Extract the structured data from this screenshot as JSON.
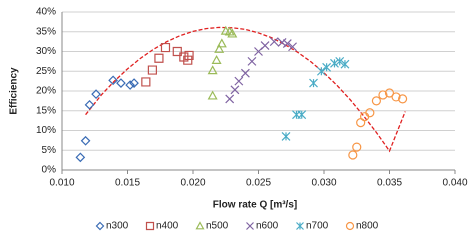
{
  "chart_data": {
    "type": "scatter",
    "x_label": "Flow rate Q [m³/s]",
    "y_label": "Efficiency",
    "xlim": [
      0.01,
      0.04
    ],
    "ylim": [
      0,
      40
    ],
    "xticks": [
      {
        "value": 0.01,
        "label": "0.010"
      },
      {
        "value": 0.015,
        "label": "0.015"
      },
      {
        "value": 0.02,
        "label": "0.020"
      },
      {
        "value": 0.025,
        "label": "0.025"
      },
      {
        "value": 0.03,
        "label": "0.030"
      },
      {
        "value": 0.035,
        "label": "0.035"
      },
      {
        "value": 0.04,
        "label": "0.040"
      }
    ],
    "yticks": [
      {
        "value": 0,
        "label": "0%"
      },
      {
        "value": 5,
        "label": "5%"
      },
      {
        "value": 10,
        "label": "10%"
      },
      {
        "value": 15,
        "label": "15%"
      },
      {
        "value": 20,
        "label": "20%"
      },
      {
        "value": 25,
        "label": "25%"
      },
      {
        "value": 30,
        "label": "30%"
      },
      {
        "value": 35,
        "label": "35%"
      },
      {
        "value": 40,
        "label": "40%"
      }
    ],
    "grid": true,
    "legend": "bottom",
    "series": [
      {
        "name": "n300",
        "color": "#3a6cb5",
        "marker": "diamond",
        "x": [
          0.0114,
          0.0118,
          0.0121,
          0.0126,
          0.0139,
          0.0145,
          0.0152,
          0.0155
        ],
        "values": [
          3.2,
          7.4,
          16.5,
          19.2,
          22.7,
          22.0,
          21.5,
          22.0
        ]
      },
      {
        "name": "n400",
        "color": "#c0504d",
        "marker": "square",
        "x": [
          0.0164,
          0.0169,
          0.0174,
          0.0179,
          0.0188,
          0.0193,
          0.0196,
          0.0197
        ],
        "values": [
          22.3,
          25.3,
          28.3,
          31.0,
          30.0,
          28.6,
          27.8,
          29.0
        ]
      },
      {
        "name": "n500",
        "color": "#9bbb59",
        "marker": "triangle",
        "x": [
          0.0215,
          0.0215,
          0.0218,
          0.022,
          0.0222,
          0.0225,
          0.0228,
          0.023
        ],
        "values": [
          18.8,
          25.2,
          27.8,
          30.6,
          32.0,
          35.2,
          35.0,
          34.5
        ]
      },
      {
        "name": "n600",
        "color": "#7f63a2",
        "marker": "x",
        "x": [
          0.0228,
          0.0232,
          0.0235,
          0.024,
          0.0245,
          0.025,
          0.0255,
          0.0262,
          0.0268,
          0.0272,
          0.0276
        ],
        "values": [
          18.0,
          20.3,
          22.5,
          24.5,
          27.5,
          30.0,
          31.5,
          32.5,
          32.3,
          32.0,
          31.2
        ]
      },
      {
        "name": "n700",
        "color": "#4aacc6",
        "marker": "asterisk",
        "x": [
          0.0271,
          0.0279,
          0.0283,
          0.0292,
          0.0298,
          0.0302,
          0.0308,
          0.0312,
          0.0316
        ],
        "values": [
          8.5,
          14.0,
          14.0,
          22.0,
          25.0,
          26.0,
          27.0,
          27.5,
          26.8
        ]
      },
      {
        "name": "n800",
        "color": "#f79646",
        "marker": "circle",
        "x": [
          0.0322,
          0.0325,
          0.0328,
          0.0331,
          0.0335,
          0.034,
          0.0345,
          0.035,
          0.0355,
          0.036
        ],
        "values": [
          3.8,
          5.8,
          12.0,
          13.5,
          14.5,
          17.5,
          19.0,
          19.5,
          18.5,
          18.0
        ]
      }
    ],
    "trend_line": {
      "color": "#e02020",
      "x": [
        0.0118,
        0.013,
        0.014,
        0.015,
        0.016,
        0.017,
        0.018,
        0.019,
        0.02,
        0.021,
        0.022,
        0.023,
        0.024,
        0.025,
        0.026,
        0.027,
        0.028,
        0.029,
        0.03,
        0.031,
        0.032,
        0.033,
        0.034,
        0.035,
        0.0362
      ],
      "y": [
        14.0,
        19.0,
        22.5,
        25.6,
        28.3,
        30.6,
        32.5,
        34.0,
        35.1,
        35.8,
        36.1,
        36.0,
        35.6,
        34.7,
        33.5,
        31.8,
        29.8,
        27.4,
        24.6,
        21.4,
        17.8,
        13.8,
        9.5,
        4.8,
        14.8
      ]
    }
  }
}
